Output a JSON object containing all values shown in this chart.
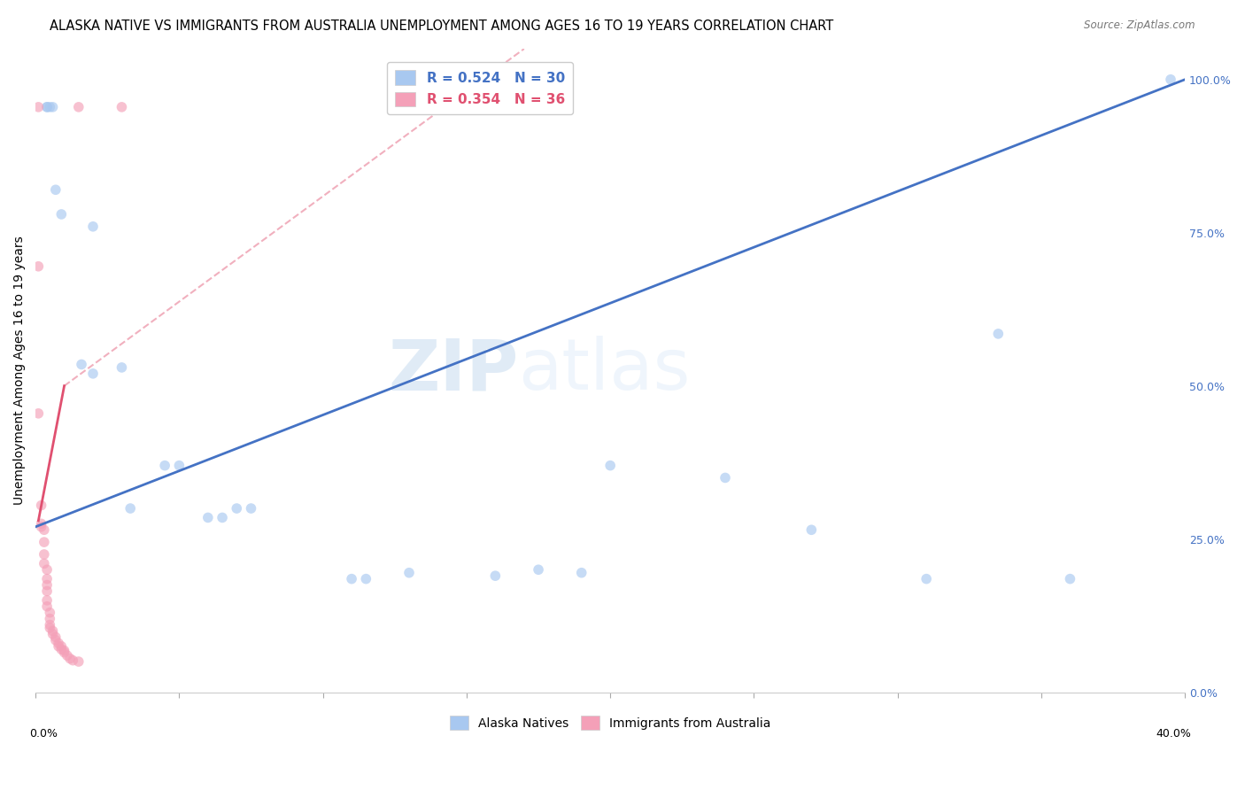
{
  "title": "ALASKA NATIVE VS IMMIGRANTS FROM AUSTRALIA UNEMPLOYMENT AMONG AGES 16 TO 19 YEARS CORRELATION CHART",
  "source": "Source: ZipAtlas.com",
  "ylabel": "Unemployment Among Ages 16 to 19 years",
  "ylabel_right_ticks": [
    "0.0%",
    "25.0%",
    "50.0%",
    "75.0%",
    "100.0%"
  ],
  "ylabel_right_vals": [
    0.0,
    0.25,
    0.5,
    0.75,
    1.0
  ],
  "x_range": [
    0.0,
    0.4
  ],
  "y_range": [
    0.0,
    1.05
  ],
  "watermark_left": "ZIP",
  "watermark_right": "atlas",
  "legend_blue_label": "R = 0.524   N = 30",
  "legend_pink_label": "R = 0.354   N = 36",
  "legend_blue_name": "Alaska Natives",
  "legend_pink_name": "Immigrants from Australia",
  "blue_color": "#A8C8F0",
  "pink_color": "#F4A0B8",
  "blue_line_color": "#4472C4",
  "pink_line_color": "#E05070",
  "blue_scatter": [
    [
      0.004,
      0.955
    ],
    [
      0.004,
      0.955
    ],
    [
      0.005,
      0.955
    ],
    [
      0.006,
      0.955
    ],
    [
      0.007,
      0.82
    ],
    [
      0.009,
      0.78
    ],
    [
      0.016,
      0.535
    ],
    [
      0.02,
      0.76
    ],
    [
      0.02,
      0.52
    ],
    [
      0.03,
      0.53
    ],
    [
      0.033,
      0.3
    ],
    [
      0.045,
      0.37
    ],
    [
      0.05,
      0.37
    ],
    [
      0.06,
      0.285
    ],
    [
      0.065,
      0.285
    ],
    [
      0.07,
      0.3
    ],
    [
      0.075,
      0.3
    ],
    [
      0.11,
      0.185
    ],
    [
      0.115,
      0.185
    ],
    [
      0.13,
      0.195
    ],
    [
      0.16,
      0.19
    ],
    [
      0.175,
      0.2
    ],
    [
      0.19,
      0.195
    ],
    [
      0.2,
      0.37
    ],
    [
      0.24,
      0.35
    ],
    [
      0.27,
      0.265
    ],
    [
      0.31,
      0.185
    ],
    [
      0.335,
      0.585
    ],
    [
      0.36,
      0.185
    ],
    [
      0.395,
      1.0
    ]
  ],
  "pink_scatter": [
    [
      0.001,
      0.955
    ],
    [
      0.015,
      0.955
    ],
    [
      0.03,
      0.955
    ],
    [
      0.001,
      0.695
    ],
    [
      0.001,
      0.455
    ],
    [
      0.002,
      0.305
    ],
    [
      0.002,
      0.275
    ],
    [
      0.002,
      0.27
    ],
    [
      0.003,
      0.265
    ],
    [
      0.003,
      0.245
    ],
    [
      0.003,
      0.225
    ],
    [
      0.003,
      0.21
    ],
    [
      0.004,
      0.2
    ],
    [
      0.004,
      0.185
    ],
    [
      0.004,
      0.175
    ],
    [
      0.004,
      0.165
    ],
    [
      0.004,
      0.15
    ],
    [
      0.004,
      0.14
    ],
    [
      0.005,
      0.13
    ],
    [
      0.005,
      0.12
    ],
    [
      0.005,
      0.11
    ],
    [
      0.005,
      0.105
    ],
    [
      0.006,
      0.1
    ],
    [
      0.006,
      0.095
    ],
    [
      0.007,
      0.09
    ],
    [
      0.007,
      0.085
    ],
    [
      0.008,
      0.08
    ],
    [
      0.008,
      0.075
    ],
    [
      0.009,
      0.075
    ],
    [
      0.009,
      0.07
    ],
    [
      0.01,
      0.068
    ],
    [
      0.01,
      0.065
    ],
    [
      0.011,
      0.06
    ],
    [
      0.012,
      0.055
    ],
    [
      0.013,
      0.052
    ],
    [
      0.015,
      0.05
    ]
  ],
  "blue_line": {
    "x0": 0.0,
    "y0": 0.27,
    "x1": 0.4,
    "y1": 1.0
  },
  "pink_line_solid": {
    "x0": 0.001,
    "y0": 0.28,
    "x1": 0.01,
    "y1": 0.5
  },
  "pink_line_dash": {
    "x0": 0.01,
    "y0": 0.5,
    "x1": 0.17,
    "y1": 1.05
  },
  "grid_color": "#DDDDDD",
  "bg_color": "#FFFFFF",
  "title_fontsize": 10.5,
  "source_fontsize": 8.5,
  "axis_label_fontsize": 10,
  "tick_fontsize": 9,
  "legend_fontsize": 11,
  "scatter_size": 70,
  "scatter_alpha": 0.65
}
